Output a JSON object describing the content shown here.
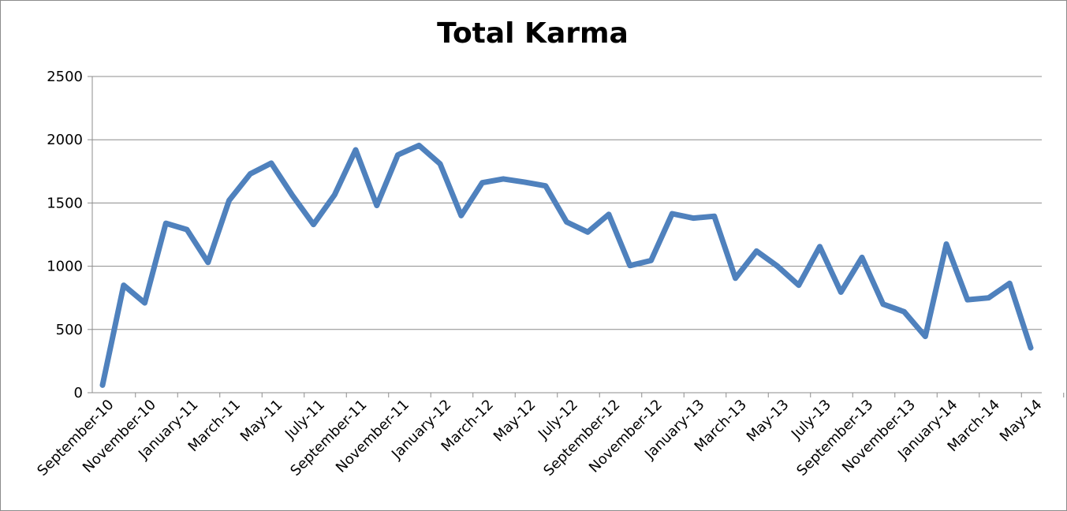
{
  "chart_data": {
    "type": "line",
    "title": "Total Karma",
    "xlabel": "",
    "ylabel": "",
    "ylim": [
      0,
      2500
    ],
    "y_ticks": [
      0,
      500,
      1000,
      1500,
      2000,
      2500
    ],
    "grid": true,
    "legend": "none",
    "x_tick_labels": [
      "September-10",
      "November-10",
      "January-11",
      "March-11",
      "May-11",
      "July-11",
      "September-11",
      "November-11",
      "January-12",
      "March-12",
      "May-12",
      "July-12",
      "September-12",
      "November-12",
      "January-13",
      "March-13",
      "May-13",
      "July-13",
      "September-13",
      "November-13",
      "January-14",
      "March-14",
      "May-14"
    ],
    "series": [
      {
        "color": "#4f81bd",
        "x": [
          "2010-09",
          "2010-10",
          "2010-11",
          "2010-12",
          "2011-01",
          "2011-02",
          "2011-03",
          "2011-04",
          "2011-05",
          "2011-06",
          "2011-07",
          "2011-08",
          "2011-09",
          "2011-10",
          "2011-11",
          "2011-12",
          "2012-01",
          "2012-02",
          "2012-03",
          "2012-04",
          "2012-05",
          "2012-06",
          "2012-07",
          "2012-08",
          "2012-09",
          "2012-10",
          "2012-11",
          "2012-12",
          "2013-01",
          "2013-02",
          "2013-03",
          "2013-04",
          "2013-05",
          "2013-06",
          "2013-07",
          "2013-08",
          "2013-09",
          "2013-10",
          "2013-11",
          "2013-12",
          "2014-01",
          "2014-02",
          "2014-03",
          "2014-04",
          "2014-05"
        ],
        "values": [
          60,
          850,
          710,
          1340,
          1290,
          1030,
          1520,
          1730,
          1815,
          1560,
          1330,
          1565,
          1920,
          1480,
          1880,
          1955,
          1810,
          1400,
          1660,
          1690,
          1665,
          1635,
          1350,
          1270,
          1410,
          1005,
          1045,
          1415,
          1380,
          1395,
          905,
          1120,
          1000,
          850,
          1155,
          795,
          1070,
          700,
          640,
          445,
          1175,
          735,
          750,
          865,
          355
        ]
      }
    ]
  }
}
